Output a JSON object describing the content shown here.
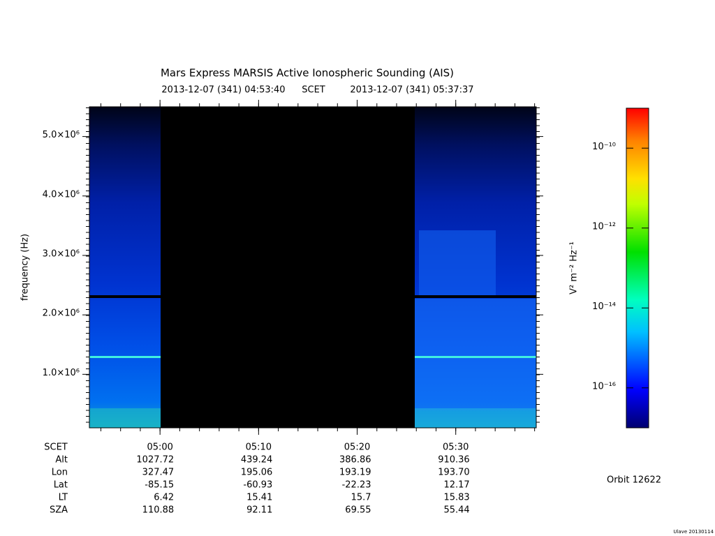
{
  "chart_data": {
    "type": "spectrogram",
    "title": "Mars Express MARSIS Active Ionospheric Sounding (AIS)",
    "start_time": "2013-12-07 (341) 04:53:40",
    "time_label": "SCET",
    "end_time": "2013-12-07 (341) 05:37:37",
    "ylabel": "frequency (Hz)",
    "ylim": [
      100000,
      5500000
    ],
    "yticks": [
      {
        "value": 1000000,
        "label": "1.0×10⁶"
      },
      {
        "value": 2000000,
        "label": "2.0×10⁶"
      },
      {
        "value": 3000000,
        "label": "3.0×10⁶"
      },
      {
        "value": 4000000,
        "label": "4.0×10⁶"
      },
      {
        "value": 5000000,
        "label": "5.0×10⁶"
      }
    ],
    "xlim": [
      "04:52:50",
      "05:38:10"
    ],
    "xticks": [
      "05:00",
      "05:10",
      "05:20",
      "05:30"
    ],
    "colorbar": {
      "label": "V² m⁻² Hz⁻¹",
      "log": true,
      "lim": [
        1e-17,
        1e-09
      ],
      "ticks": [
        {
          "value": 1e-10,
          "label": "10⁻¹⁰"
        },
        {
          "value": 1e-12,
          "label": "10⁻¹²"
        },
        {
          "value": 1e-14,
          "label": "10⁻¹⁴"
        },
        {
          "value": 1e-16,
          "label": "10⁻¹⁶"
        }
      ]
    }
  },
  "ephemeris": {
    "time_label": "SCET",
    "rows": [
      {
        "name": "Alt",
        "values": [
          1027.72,
          439.24,
          386.86,
          910.36
        ]
      },
      {
        "name": "Lon",
        "values": [
          327.47,
          195.06,
          193.19,
          193.7
        ],
        "labels": [
          "327.47",
          "195.06",
          "193.19",
          "193.70"
        ]
      },
      {
        "name": "Lat",
        "values": [
          -85.15,
          -60.93,
          -22.23,
          12.17
        ]
      },
      {
        "name": "LT",
        "values": [
          6.42,
          15.41,
          15.7,
          15.83
        ]
      },
      {
        "name": "SZA",
        "values": [
          110.88,
          92.11,
          69.55,
          55.44
        ]
      }
    ]
  },
  "orbit": "Orbit 12622",
  "credit": "Ulave 20130114"
}
